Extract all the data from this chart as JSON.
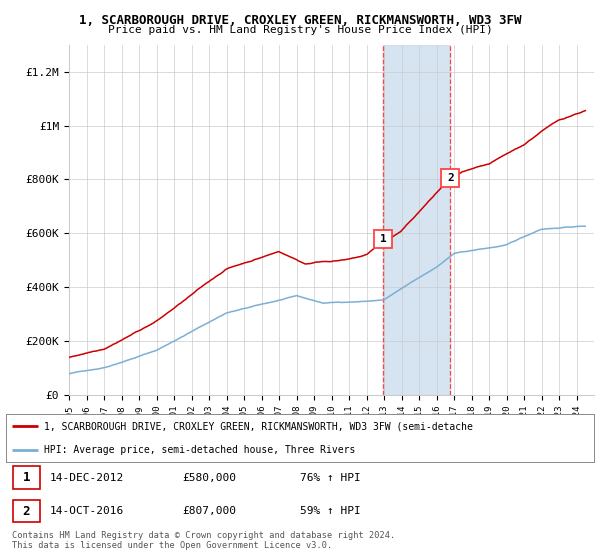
{
  "title": "1, SCARBOROUGH DRIVE, CROXLEY GREEN, RICKMANSWORTH, WD3 3FW",
  "subtitle": "Price paid vs. HM Land Registry's House Price Index (HPI)",
  "ylabel_ticks": [
    "£0",
    "£200K",
    "£400K",
    "£600K",
    "£800K",
    "£1M",
    "£1.2M"
  ],
  "ytick_vals": [
    0,
    200000,
    400000,
    600000,
    800000,
    1000000,
    1200000
  ],
  "ylim": [
    0,
    1300000
  ],
  "xlim_start": 1995.0,
  "xlim_end": 2025.0,
  "sale1_x": 2012.95,
  "sale1_y": 580000,
  "sale2_x": 2016.79,
  "sale2_y": 807000,
  "sale1_label": "1",
  "sale2_label": "2",
  "sale1_date": "14-DEC-2012",
  "sale1_price": "£580,000",
  "sale1_hpi": "76% ↑ HPI",
  "sale2_date": "14-OCT-2016",
  "sale2_price": "£807,000",
  "sale2_hpi": "59% ↑ HPI",
  "red_line_color": "#CC0000",
  "blue_line_color": "#7BAFD4",
  "shade_color": "#C5D8EC",
  "vline_color": "#FF4444",
  "background_color": "#FFFFFF",
  "legend1_label": "1, SCARBOROUGH DRIVE, CROXLEY GREEN, RICKMANSWORTH, WD3 3FW (semi-detache",
  "legend2_label": "HPI: Average price, semi-detached house, Three Rivers",
  "footer": "Contains HM Land Registry data © Crown copyright and database right 2024.\nThis data is licensed under the Open Government Licence v3.0."
}
